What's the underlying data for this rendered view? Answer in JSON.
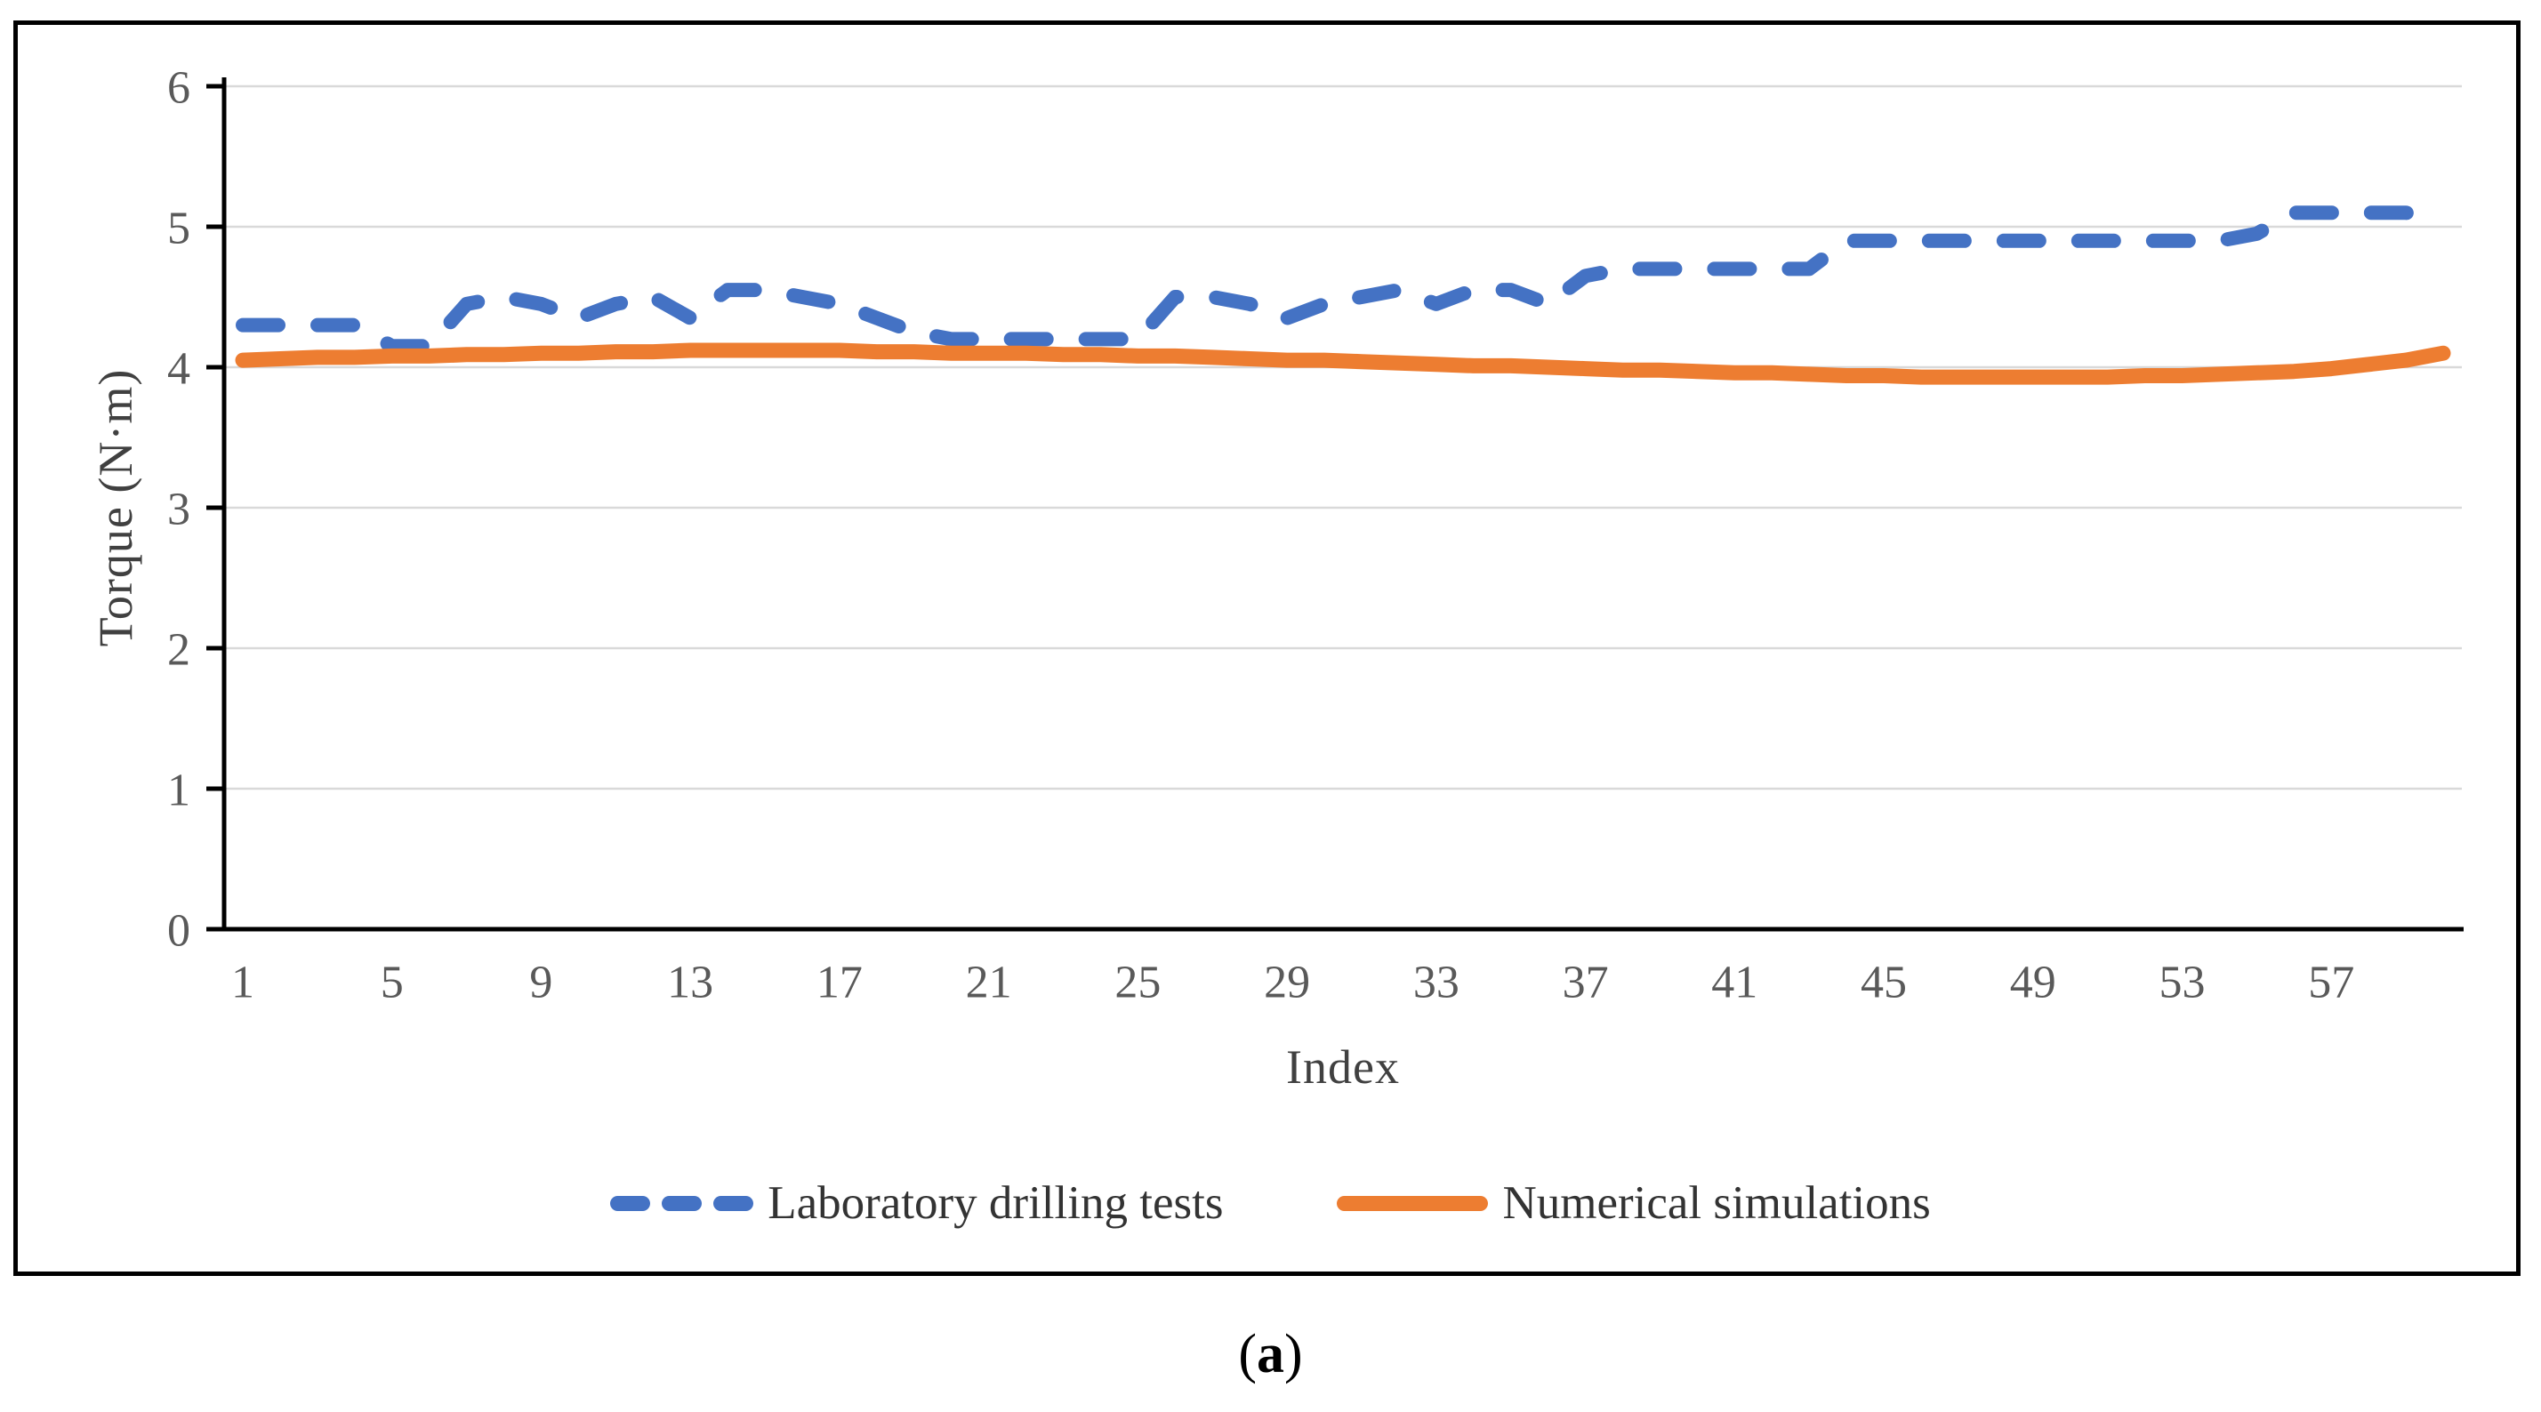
{
  "figure": {
    "caption": {
      "open": "(",
      "letter": "a",
      "close": ")"
    }
  },
  "chart_data": {
    "type": "line",
    "title": "",
    "xlabel": "Index",
    "ylabel": "Torque (N·m)",
    "ylim": [
      0,
      6
    ],
    "y_ticks": [
      0,
      1,
      2,
      3,
      4,
      5,
      6
    ],
    "x_ticks": [
      1,
      5,
      9,
      13,
      17,
      21,
      25,
      29,
      33,
      37,
      41,
      45,
      49,
      53,
      57
    ],
    "n_points": 60,
    "x_start": 1,
    "grid": true,
    "legend_position": "bottom",
    "colors": {
      "axis": "#000000",
      "gridline": "#D9D9D9",
      "tick_label": "#595959",
      "series_blue": "#4472C4",
      "series_orange": "#ED7D31"
    },
    "series": [
      {
        "name": "Laboratory drilling tests",
        "style": "dashed",
        "color": "#4472C4",
        "values": [
          4.3,
          4.3,
          4.3,
          4.3,
          4.15,
          4.15,
          4.45,
          4.5,
          4.45,
          4.35,
          4.45,
          4.5,
          4.35,
          4.55,
          4.55,
          4.5,
          4.45,
          4.35,
          4.25,
          4.2,
          4.2,
          4.2,
          4.2,
          4.2,
          4.2,
          4.5,
          4.5,
          4.45,
          4.35,
          4.45,
          4.5,
          4.55,
          4.45,
          4.55,
          4.55,
          4.45,
          4.65,
          4.7,
          4.7,
          4.7,
          4.7,
          4.7,
          4.7,
          4.9,
          4.9,
          4.9,
          4.9,
          4.9,
          4.9,
          4.9,
          4.9,
          4.9,
          4.9,
          4.9,
          4.95,
          5.1,
          5.1,
          5.1,
          5.1,
          5.05
        ]
      },
      {
        "name": "Numerical simulations",
        "style": "solid",
        "color": "#ED7D31",
        "values": [
          4.05,
          4.06,
          4.07,
          4.07,
          4.08,
          4.08,
          4.09,
          4.09,
          4.1,
          4.1,
          4.11,
          4.11,
          4.12,
          4.12,
          4.12,
          4.12,
          4.12,
          4.11,
          4.11,
          4.1,
          4.1,
          4.1,
          4.09,
          4.09,
          4.08,
          4.08,
          4.07,
          4.06,
          4.05,
          4.05,
          4.04,
          4.03,
          4.02,
          4.01,
          4.01,
          4.0,
          3.99,
          3.98,
          3.98,
          3.97,
          3.96,
          3.96,
          3.95,
          3.94,
          3.94,
          3.93,
          3.93,
          3.93,
          3.93,
          3.93,
          3.93,
          3.94,
          3.94,
          3.95,
          3.96,
          3.97,
          3.99,
          4.02,
          4.05,
          4.1
        ]
      }
    ]
  }
}
